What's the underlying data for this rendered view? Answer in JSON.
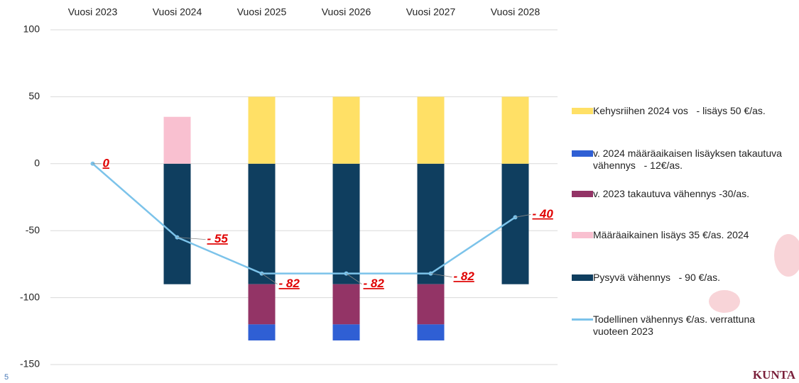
{
  "chart_data": {
    "type": "bar",
    "stacked": true,
    "categories": [
      "Vuosi 2023",
      "Vuosi 2024",
      "Vuosi 2025",
      "Vuosi 2026",
      "Vuosi 2027",
      "Vuosi 2028"
    ],
    "series": [
      {
        "name": "Kehysriihen 2024 vos   - lisäys 50 €/as.",
        "color": "#ffe066",
        "values": [
          null,
          null,
          50,
          50,
          50,
          50
        ]
      },
      {
        "name": "v. 2024 määräaikaisen lisäyksen takautuva vähennys   - 12€/as.",
        "color": "#2f5fd4",
        "values": [
          null,
          null,
          -12,
          -12,
          -12,
          null
        ]
      },
      {
        "name": "v. 2023 takautuva vähennys -30/as.",
        "color": "#933466",
        "values": [
          null,
          null,
          -30,
          -30,
          -30,
          null
        ]
      },
      {
        "name": "Määräaikainen lisäys 35 €/as. 2024",
        "color": "#f9c0d0",
        "values": [
          null,
          35,
          null,
          null,
          null,
          null
        ]
      },
      {
        "name": "Pysyvä vähennys   - 90 €/as.",
        "color": "#0f3e5f",
        "values": [
          null,
          -90,
          -90,
          -90,
          -90,
          -90
        ]
      },
      {
        "name": "Todellinen vähennys €/as. verrattuna vuoteen 2023",
        "color": "#7cc3ea",
        "type": "line",
        "values": [
          0,
          -55,
          -82,
          -82,
          -82,
          -40
        ],
        "value_labels": [
          "0",
          "- 55",
          "- 82",
          "- 82",
          "- 82",
          "- 40"
        ]
      }
    ],
    "ylim": [
      -150,
      100
    ],
    "yticks": [
      -150,
      -100,
      -50,
      0,
      50,
      100
    ],
    "grid": true,
    "page_number": "5",
    "logo": "KUNTA"
  }
}
